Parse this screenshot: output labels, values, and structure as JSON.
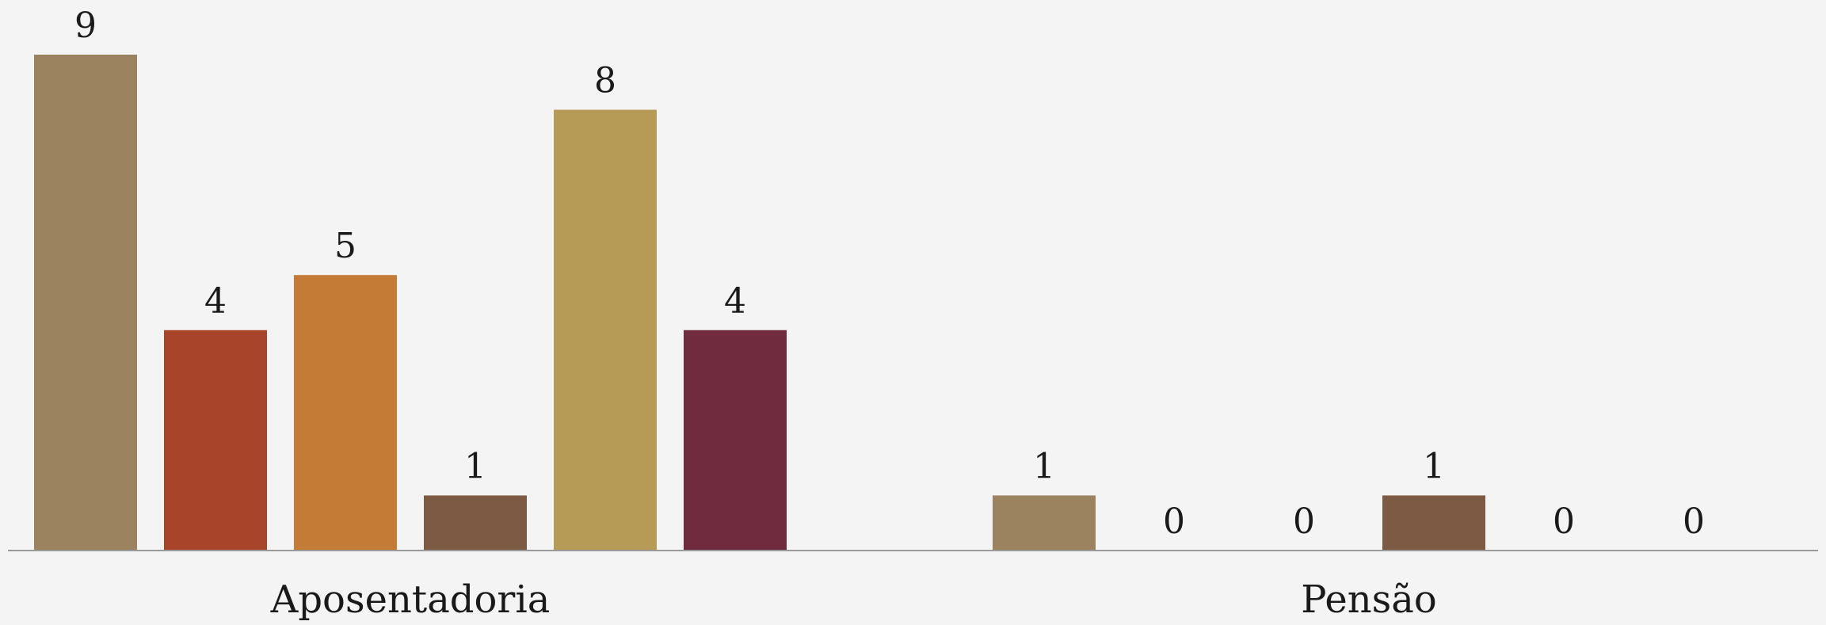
{
  "chart_data": {
    "type": "bar",
    "categories": [
      "Aposentadoria",
      "Pensão"
    ],
    "series": [
      {
        "values": [
          9,
          1
        ],
        "color": "#9b8360"
      },
      {
        "values": [
          4,
          0
        ],
        "color": "#a7442a"
      },
      {
        "values": [
          5,
          0
        ],
        "color": "#c47b35"
      },
      {
        "values": [
          1,
          1
        ],
        "color": "#7d5a43"
      },
      {
        "values": [
          8,
          0
        ],
        "color": "#b59b55"
      },
      {
        "values": [
          4,
          0
        ],
        "color": "#702b3f"
      }
    ],
    "ylim": [
      0,
      9
    ],
    "grid": false,
    "legend": "none",
    "axis_color": "#9a9a9a"
  }
}
